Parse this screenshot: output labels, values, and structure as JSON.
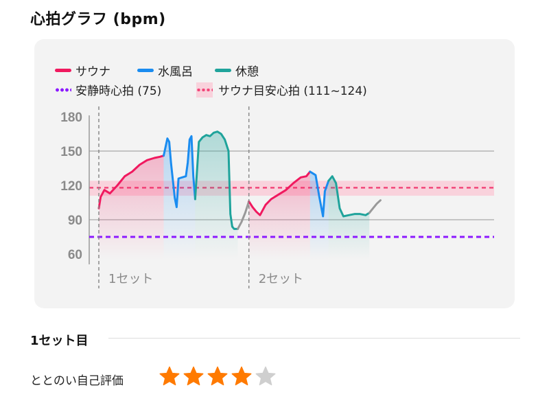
{
  "header": {
    "title": "心拍グラフ (bpm)"
  },
  "legend": {
    "sauna": "サウナ",
    "water_bath": "水風呂",
    "rest": "休憩",
    "resting_hr": "安静時心拍 (75)",
    "target_band": "サウナ目安心拍 (111~124)"
  },
  "colors": {
    "sauna": "#f0195f",
    "water_bath": "#1a8cf0",
    "rest": "#1fa39b",
    "transition": "#999999",
    "resting_hr": "#8c1aff",
    "target_band": "#f9d2dc",
    "star_on": "#ff7a00",
    "star_off": "#cfcfcf"
  },
  "chart_data": {
    "type": "line",
    "title": "心拍グラフ (bpm)",
    "ylabel": "bpm",
    "yticks": [
      180,
      150,
      120,
      90,
      60
    ],
    "ylim": [
      60,
      180
    ],
    "sets": [
      "1セット",
      "2セット"
    ],
    "resting_hr": 75,
    "target_band": [
      111,
      124
    ],
    "series": [
      {
        "name": "サウナ",
        "phase": "sauna",
        "values": [
          [
            0,
            100
          ],
          [
            1,
            110
          ],
          [
            3,
            116
          ],
          [
            6,
            113
          ],
          [
            10,
            120
          ],
          [
            14,
            128
          ],
          [
            18,
            132
          ],
          [
            22,
            138
          ],
          [
            26,
            142
          ],
          [
            30,
            144
          ],
          [
            33,
            145
          ],
          [
            35,
            146
          ]
        ]
      },
      {
        "name": "水風呂",
        "phase": "water",
        "values": [
          [
            35,
            146
          ],
          [
            37,
            161
          ],
          [
            38,
            158
          ],
          [
            39,
            139
          ],
          [
            41,
            109
          ],
          [
            42,
            101
          ],
          [
            43,
            126
          ],
          [
            45,
            127
          ],
          [
            47,
            128
          ],
          [
            48,
            140
          ],
          [
            49,
            160
          ],
          [
            50,
            163
          ],
          [
            51,
            128
          ],
          [
            52,
            108
          ]
        ]
      },
      {
        "name": "休憩",
        "phase": "rest",
        "values": [
          [
            52,
            108
          ],
          [
            54,
            158
          ],
          [
            56,
            162
          ],
          [
            58,
            164
          ],
          [
            60,
            163
          ],
          [
            62,
            166
          ],
          [
            64,
            167
          ],
          [
            66,
            165
          ],
          [
            68,
            160
          ],
          [
            70,
            150
          ],
          [
            71,
            95
          ],
          [
            72,
            84
          ],
          [
            73,
            82
          ],
          [
            75,
            82
          ]
        ]
      },
      {
        "name": "",
        "phase": "transition",
        "values": [
          [
            75,
            82
          ],
          [
            77,
            88
          ],
          [
            79,
            96
          ],
          [
            81,
            106
          ]
        ]
      },
      {
        "name": "サウナ",
        "phase": "sauna",
        "values": [
          [
            81,
            106
          ],
          [
            83,
            101
          ],
          [
            85,
            97
          ],
          [
            87,
            94
          ],
          [
            88,
            97
          ],
          [
            90,
            103
          ],
          [
            93,
            108
          ],
          [
            97,
            112
          ],
          [
            101,
            116
          ],
          [
            105,
            122
          ],
          [
            109,
            127
          ],
          [
            112,
            128
          ],
          [
            114,
            132
          ]
        ]
      },
      {
        "name": "水風呂",
        "phase": "water",
        "values": [
          [
            114,
            132
          ],
          [
            116,
            130
          ],
          [
            117,
            129
          ],
          [
            119,
            110
          ],
          [
            121,
            93
          ],
          [
            122,
            115
          ],
          [
            124,
            124
          ]
        ]
      },
      {
        "name": "休憩",
        "phase": "rest",
        "values": [
          [
            124,
            124
          ],
          [
            126,
            128
          ],
          [
            128,
            122
          ],
          [
            130,
            100
          ],
          [
            132,
            93
          ],
          [
            135,
            94
          ],
          [
            138,
            95
          ],
          [
            141,
            95
          ],
          [
            144,
            94
          ],
          [
            146,
            96
          ]
        ]
      },
      {
        "name": "",
        "phase": "transition",
        "values": [
          [
            146,
            96
          ],
          [
            148,
            100
          ],
          [
            150,
            104
          ],
          [
            152,
            107
          ]
        ]
      }
    ],
    "set_markers": [
      0,
      81
    ],
    "x_label_positions": [
      0,
      81
    ]
  },
  "evaluation": {
    "section_title": "1セット目",
    "rating_label": "ととのい自己評価",
    "rating": 4,
    "max_rating": 5
  }
}
